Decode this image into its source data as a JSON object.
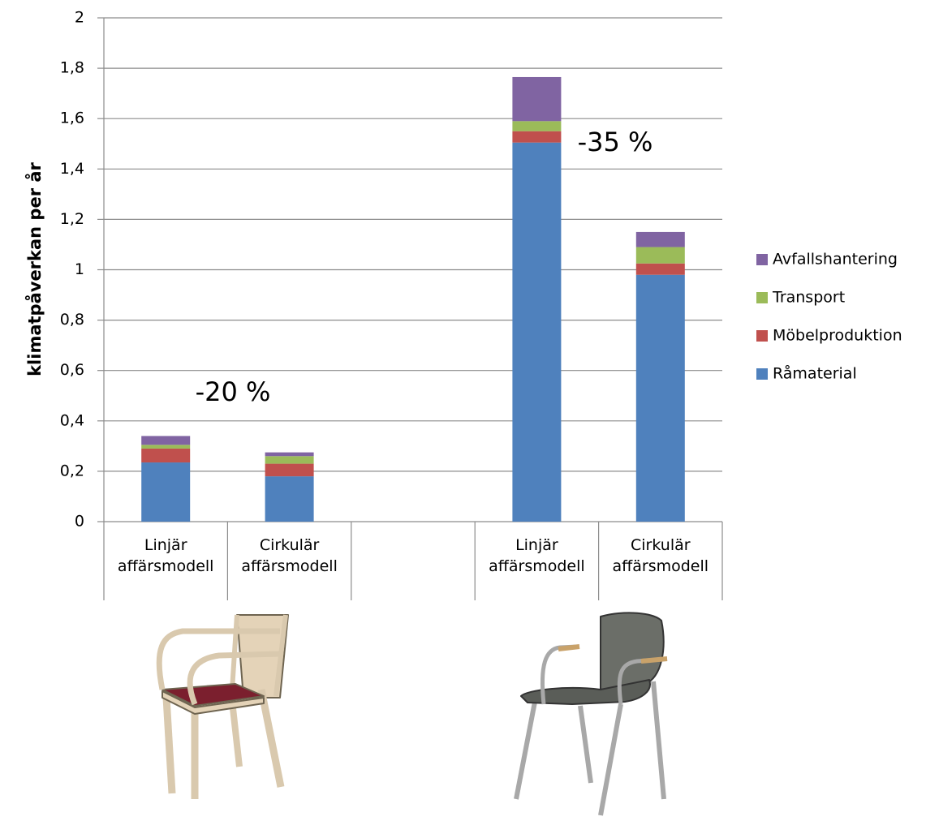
{
  "chart_data": {
    "type": "stacked_bar",
    "y_label": "klimatpåverkan per år",
    "categories": [
      "Linjär affärsmodell",
      "Cirkulär affärsmodell",
      null,
      "Linjär affärsmodell",
      "Cirkulär affärsmodell"
    ],
    "series": [
      {
        "name": "Råmaterial",
        "color": "#4f81bd",
        "values": [
          0.235,
          0.18,
          null,
          1.505,
          0.98
        ]
      },
      {
        "name": "Möbelproduktion",
        "color": "#c0504d",
        "values": [
          0.055,
          0.05,
          null,
          0.045,
          0.045
        ]
      },
      {
        "name": "Transport",
        "color": "#9bbb59",
        "values": [
          0.015,
          0.03,
          null,
          0.04,
          0.065
        ]
      },
      {
        "name": "Avfallshantering",
        "color": "#8064a2",
        "values": [
          0.035,
          0.015,
          null,
          0.175,
          0.06
        ]
      }
    ],
    "ylim": [
      0,
      2
    ],
    "yticks": [
      0,
      {
        "value": 0.2,
        "label": "0,2"
      },
      {
        "value": 0.4,
        "label": "0,4"
      },
      {
        "value": 0.6,
        "label": "0,6"
      },
      {
        "value": 0.8,
        "label": "0,8"
      },
      1,
      {
        "value": 1.2,
        "label": "1,2"
      },
      {
        "value": 1.4,
        "label": "1,4"
      },
      {
        "value": 1.6,
        "label": "1,6"
      },
      {
        "value": 1.8,
        "label": "1,8"
      },
      2
    ],
    "grid": true,
    "legend": "right",
    "annotations": [
      "-20 %",
      "-35 %"
    ]
  }
}
